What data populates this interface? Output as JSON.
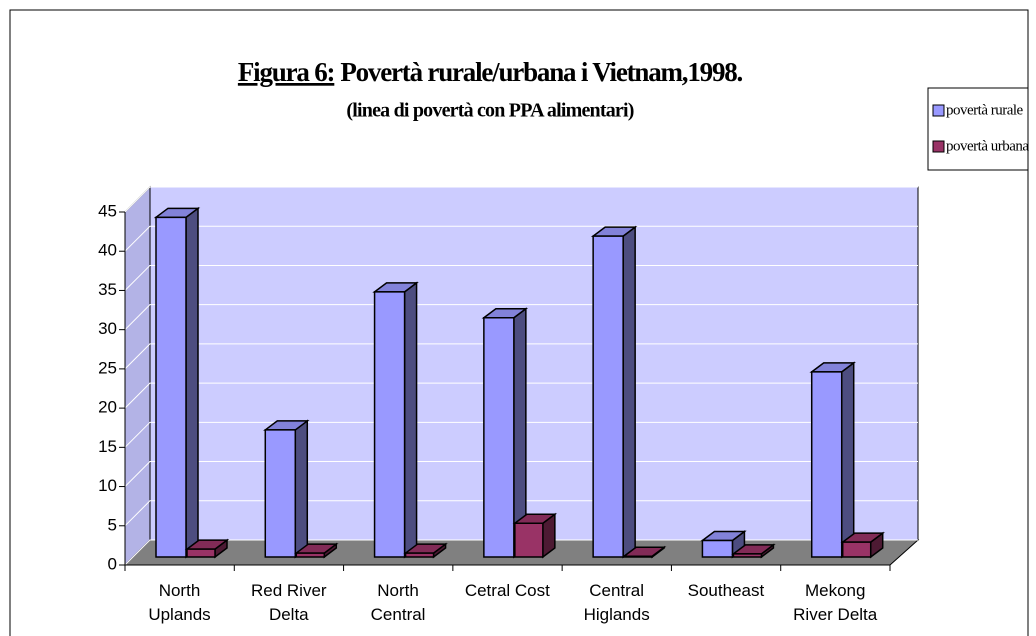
{
  "chart_data": {
    "type": "bar3d",
    "title_prefix": "Figura 6:",
    "title": "Povertà rurale/urbana i Vietnam,1998.",
    "subtitle": "(linea di povertà con PPA alimentari)",
    "categories": [
      "North\nUplands",
      "Red River\nDelta",
      "North\nCentral",
      "Cetral Cost",
      "Central\nHiglands",
      "Southeast",
      "Mekong\nRiver Delta"
    ],
    "series": [
      {
        "name": "povertà rurale",
        "color": "#9999ff",
        "values": [
          43.3,
          16.2,
          33.8,
          30.5,
          40.9,
          2.1,
          23.6
        ]
      },
      {
        "name": "povertà urbana",
        "color": "#993366",
        "values": [
          1.0,
          0.5,
          0.5,
          4.3,
          0.1,
          0.4,
          1.9
        ]
      }
    ],
    "ylim": [
      0,
      45
    ],
    "yticks": [
      0,
      5,
      10,
      15,
      20,
      25,
      30,
      35,
      40,
      45
    ],
    "grid": true,
    "legend": "top-right"
  }
}
